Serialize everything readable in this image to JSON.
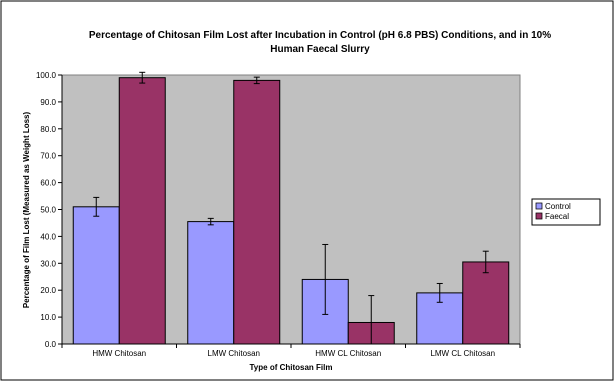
{
  "chart_data": {
    "type": "bar",
    "title_line1": "Percentage of Chitosan Film Lost after Incubation in Control (pH 6.8 PBS) Conditions, and in 10%",
    "title_line2": "Human Faecal Slurry",
    "xlabel": "Type of Chitosan Film",
    "ylabel": "Percentage of Film Lost (Measured as Weight Loss)",
    "categories": [
      "HMW Chitosan",
      "LMW Chitosan",
      "HMW CL Chitosan",
      "LMW CL Chitosan"
    ],
    "series": [
      {
        "name": "Control",
        "color": "#9999ff",
        "values": [
          51.0,
          45.5,
          24.0,
          19.0
        ],
        "errors": [
          3.5,
          1.2,
          13.0,
          3.5
        ]
      },
      {
        "name": "Faecal",
        "color": "#993366",
        "values": [
          99.0,
          98.0,
          8.0,
          30.5
        ],
        "errors": [
          2.0,
          1.2,
          10.0,
          4.0
        ]
      }
    ],
    "ylim": [
      0,
      100
    ],
    "yticks": [
      "0.0",
      "10.0",
      "20.0",
      "30.0",
      "40.0",
      "50.0",
      "60.0",
      "70.0",
      "80.0",
      "90.0",
      "100.0"
    ],
    "plot_background": "#c0c0c0",
    "legend_position": "right",
    "grid": false
  }
}
